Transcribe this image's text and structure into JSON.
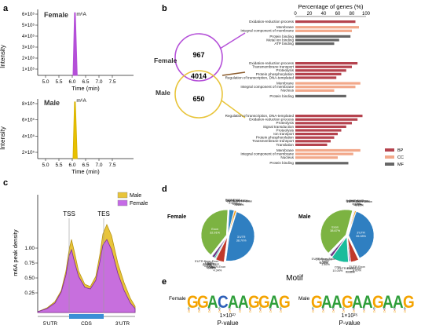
{
  "figure": {
    "panel_letters": [
      "a",
      "b",
      "c",
      "d",
      "e"
    ]
  },
  "panel_a": {
    "female": {
      "label": "Female",
      "peak_label": "m⁶A",
      "ylabel": "Intensity",
      "xlabel": "Time (min)",
      "yticks": [
        "6×10⁵",
        "5×10⁵",
        "4×10⁵",
        "3×10⁵",
        "2×10⁵",
        "1×10⁵"
      ],
      "xticks": [
        "5.0",
        "5.5",
        "6.0",
        "6.5",
        "7.0",
        "7.5"
      ],
      "peak_time": 6.1,
      "peak_fraction": 0.95,
      "color": "#b44fd8"
    },
    "male": {
      "label": "Male",
      "peak_label": "m⁶A",
      "ylabel": "Intensity",
      "xlabel": "Time (min)",
      "yticks": [
        "8×10⁵",
        "6×10⁵",
        "4×10⁵",
        "2×10⁵"
      ],
      "xticks": [
        "5.0",
        "5.5",
        "6.0",
        "6.5",
        "7.0",
        "7.5"
      ],
      "peak_time": 6.1,
      "peak_fraction": 0.95,
      "color": "#e8c000"
    }
  },
  "panel_b": {
    "title": "Percentage of genes (%)",
    "axis_ticks": [
      "0",
      "20",
      "40",
      "60",
      "80",
      "100"
    ],
    "venn": {
      "female_label": "Female",
      "male_label": "Male",
      "female_only": "967",
      "shared": "4014",
      "male_only": "650"
    },
    "legend": [
      {
        "label": "BP",
        "color": "#b5434e"
      },
      {
        "label": "CC",
        "color": "#f2a88a"
      },
      {
        "label": "MF",
        "color": "#666666"
      }
    ],
    "groups": [
      {
        "bars": [
          {
            "term": "Oxidation-reduction process",
            "value": 85,
            "cat": "BP"
          },
          {
            "term": "Membrane",
            "value": 90,
            "cat": "CC"
          },
          {
            "term": "Integral component of membrane",
            "value": 80,
            "cat": "CC"
          },
          {
            "term": "Protein binding",
            "value": 78,
            "cat": "MF"
          },
          {
            "term": "Metal ion binding",
            "value": 62,
            "cat": "MF"
          },
          {
            "term": "ATP binding",
            "value": 55,
            "cat": "MF"
          }
        ]
      },
      {
        "bars": [
          {
            "term": "Oxidation-reduction process",
            "value": 88,
            "cat": "BP"
          },
          {
            "term": "Transmembrane transport",
            "value": 80,
            "cat": "BP"
          },
          {
            "term": "Proteolysis",
            "value": 72,
            "cat": "BP"
          },
          {
            "term": "Protein phosphorylation",
            "value": 65,
            "cat": "BP"
          },
          {
            "term": "Regulation of transcription, DNA-templated",
            "value": 58,
            "cat": "BP"
          },
          {
            "term": "Membrane",
            "value": 92,
            "cat": "CC"
          },
          {
            "term": "Integral component of membrane",
            "value": 85,
            "cat": "CC"
          },
          {
            "term": "Nucleus",
            "value": 55,
            "cat": "CC"
          },
          {
            "term": "Protein binding",
            "value": 72,
            "cat": "MF"
          }
        ]
      },
      {
        "bars": [
          {
            "term": "Regulation of transcription, DNA-templated",
            "value": 95,
            "cat": "BP"
          },
          {
            "term": "Oxidation-reduction process",
            "value": 88,
            "cat": "BP"
          },
          {
            "term": "Proteolysis",
            "value": 80,
            "cat": "BP"
          },
          {
            "term": "Signal transduction",
            "value": 72,
            "cat": "BP"
          },
          {
            "term": "Proteolysis",
            "value": 65,
            "cat": "BP"
          },
          {
            "term": "Ion transport",
            "value": 60,
            "cat": "BP"
          },
          {
            "term": "Protein phosphorylation",
            "value": 55,
            "cat": "BP"
          },
          {
            "term": "Transmembrane transport",
            "value": 50,
            "cat": "BP"
          },
          {
            "term": "Translation",
            "value": 45,
            "cat": "BP"
          },
          {
            "term": "Membrane",
            "value": 92,
            "cat": "CC"
          },
          {
            "term": "Integral component of membrane",
            "value": 82,
            "cat": "CC"
          },
          {
            "term": "Nucleus",
            "value": 60,
            "cat": "CC"
          },
          {
            "term": "Protein binding",
            "value": 75,
            "cat": "MF"
          }
        ]
      }
    ]
  },
  "panel_c": {
    "ylabel": "m6A peak density",
    "yticks": [
      "1.00",
      "0.75",
      "0.50",
      "0.25"
    ],
    "landmarks": [
      "TSS",
      "TES"
    ],
    "regions": [
      "5'UTR",
      "CDS",
      "3'UTR"
    ],
    "legend": [
      {
        "label": "Male",
        "color": "#e8c43a"
      },
      {
        "label": "Female",
        "color": "#c56ae6"
      }
    ]
  },
  "panel_d": {
    "title": "Motif",
    "female_label": "Female",
    "male_label": "Male",
    "female_slices": [
      {
        "label": "3'UTR",
        "pct": "38.70%",
        "value": 38.7,
        "color": "#2f7fc1"
      },
      {
        "label": "3'UTR-Exon",
        "pct": "4.34%",
        "value": 4.34,
        "color": "#c0392b"
      },
      {
        "label": "5'UTR",
        "pct": "0.08%",
        "value": 0.08,
        "color": "#8e44ad"
      },
      {
        "label": "5'UTR-Exon",
        "pct": "0.08%",
        "value": 0.08,
        "color": "#16a085"
      },
      {
        "label": "CDS",
        "pct": "0.53%",
        "value": 0.53,
        "color": "#1abc9c"
      },
      {
        "label": "Exon",
        "pct": "1.25%",
        "value": 1.25,
        "color": "#6c3483"
      },
      {
        "label": "5'UTR-Exon-Exon",
        "pct": "0.08%",
        "value": 0.08,
        "color": "#48c9b0"
      },
      {
        "label": "Exon",
        "pct": "32.91%",
        "value": 32.91,
        "color": "#7cb342"
      },
      {
        "label": "Exon-Exon",
        "pct": "2.50%",
        "value": 2.5,
        "color": "#2e86c1"
      },
      {
        "label": "Exon-Exon-Exon",
        "pct": "0.22%",
        "value": 0.22,
        "color": "#af7ac5"
      },
      {
        "label": "3'UTR-Exon-Exon",
        "pct": "0.90%",
        "value": 0.9,
        "color": "#f39c12"
      },
      {
        "label": "3'UTR-3'UTR-Exon",
        "pct": "0.10%",
        "value": 0.1,
        "color": "#5dade2"
      }
    ],
    "male_slices": [
      {
        "label": "3'UTR",
        "pct": "35.08%",
        "value": 35.08,
        "color": "#2f7fc1"
      },
      {
        "label": "3'UTR-Exon",
        "pct": "4.60%",
        "value": 4.6,
        "color": "#c0392b"
      },
      {
        "label": "5'UTR",
        "pct": "0.71%",
        "value": 0.71,
        "color": "#8e44ad"
      },
      {
        "label": "3'UTR-Exon-Exon",
        "pct": "0.13%",
        "value": 0.13,
        "color": "#16a085"
      },
      {
        "label": "CDS",
        "pct": "10.04%",
        "value": 10.04,
        "color": "#1abc9c"
      },
      {
        "label": "Exon",
        "pct": "1.46%",
        "value": 1.46,
        "color": "#6c3483"
      },
      {
        "label": "5'UTR-Exon",
        "pct": "0.15%",
        "value": 0.15,
        "color": "#48c9b0"
      },
      {
        "label": "5'UTR-Exon-Exon",
        "pct": "0.00%",
        "value": 0.0,
        "color": "#aed6f1"
      },
      {
        "label": "Exon",
        "pct": "38.67%",
        "value": 38.67,
        "color": "#7cb342"
      },
      {
        "label": "Exon-Exon",
        "pct": "0.13%",
        "value": 0.13,
        "color": "#2e86c1"
      },
      {
        "label": "Exon-Exon-Exon",
        "pct": "0.16%",
        "value": 0.16,
        "color": "#af7ac5"
      },
      {
        "label": "3'UTR-Exon-Exon",
        "pct": "0.70%",
        "value": 0.7,
        "color": "#f39c12"
      },
      {
        "label": "3'UTR-3'UTR-Exon",
        "pct": "0.13%",
        "value": 0.13,
        "color": "#5dade2"
      }
    ]
  },
  "panel_e": {
    "female": {
      "label": "Female",
      "letters": "GGACAAGGAG",
      "pvalue": "1×10²⁷",
      "pvalue_label": "P-value"
    },
    "male": {
      "label": "Male",
      "letters": "GAAGAAGAAG",
      "pvalue": "1×10²⁵",
      "pvalue_label": "P-value"
    },
    "colors": {
      "G": "#f4a300",
      "A": "#2e9e3a",
      "C": "#2d5fb8",
      "T": "#d7301f"
    }
  }
}
